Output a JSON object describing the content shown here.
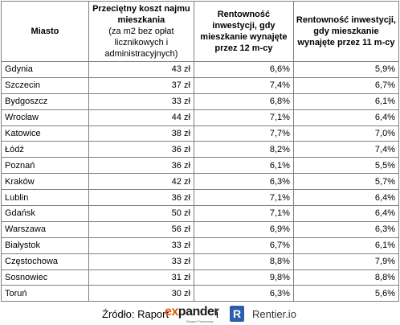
{
  "header": {
    "col1": "Miasto",
    "col2_main": "Przeciętny koszt najmu mieszkania",
    "col2_sub": "(za m2 bez opłat licznikowych i administracyjnych)",
    "col3": "Rentowność inwestycji, gdy mieszkanie wynajęte przez 12 m-cy",
    "col4": "Rentowność inwestycji, gdy mieszkanie wynajęte przez 11 m-cy"
  },
  "rows": [
    {
      "city": "Gdynia",
      "cost": "43 zł",
      "r12": "6,6%",
      "r11": "5,9%"
    },
    {
      "city": "Szczecin",
      "cost": "37 zł",
      "r12": "7,4%",
      "r11": "6,7%"
    },
    {
      "city": "Bydgoszcz",
      "cost": "33 zł",
      "r12": "6,8%",
      "r11": "6,1%"
    },
    {
      "city": "Wrocław",
      "cost": "44 zł",
      "r12": "7,1%",
      "r11": "6,4%"
    },
    {
      "city": "Katowice",
      "cost": "38 zł",
      "r12": "7,7%",
      "r11": "7,0%"
    },
    {
      "city": "Łódź",
      "cost": "36 zł",
      "r12": "8,2%",
      "r11": "7,4%"
    },
    {
      "city": "Poznań",
      "cost": "36 zł",
      "r12": "6,1%",
      "r11": "5,5%"
    },
    {
      "city": "Kraków",
      "cost": "42 zł",
      "r12": "6,3%",
      "r11": "5,7%"
    },
    {
      "city": "Lublin",
      "cost": "36 zł",
      "r12": "7,1%",
      "r11": "6,4%"
    },
    {
      "city": "Gdańsk",
      "cost": "50 zł",
      "r12": "7,1%",
      "r11": "6,4%"
    },
    {
      "city": "Warszawa",
      "cost": "56 zł",
      "r12": "6,9%",
      "r11": "6,3%"
    },
    {
      "city": "Białystok",
      "cost": "33 zł",
      "r12": "6,7%",
      "r11": "6,1%"
    },
    {
      "city": "Częstochowa",
      "cost": "33 zł",
      "r12": "8,8%",
      "r11": "7,9%"
    },
    {
      "city": "Sosnowiec",
      "cost": "31 zł",
      "r12": "9,8%",
      "r11": "8,8%"
    },
    {
      "city": "Toruń",
      "cost": "30 zł",
      "r12": "6,3%",
      "r11": "5,6%"
    }
  ],
  "footer": {
    "source_label": "Źródło: Raport",
    "logo1_ex": "ex",
    "logo1_pander": "pander",
    "logo1_tagline": "Ekspert Finansowy",
    "conjunction": "i",
    "logo2_mark": "R",
    "logo2_text": "Rentier.io"
  },
  "colors": {
    "expander_orange": "#e35205",
    "rentier_blue": "#2b5fad"
  }
}
